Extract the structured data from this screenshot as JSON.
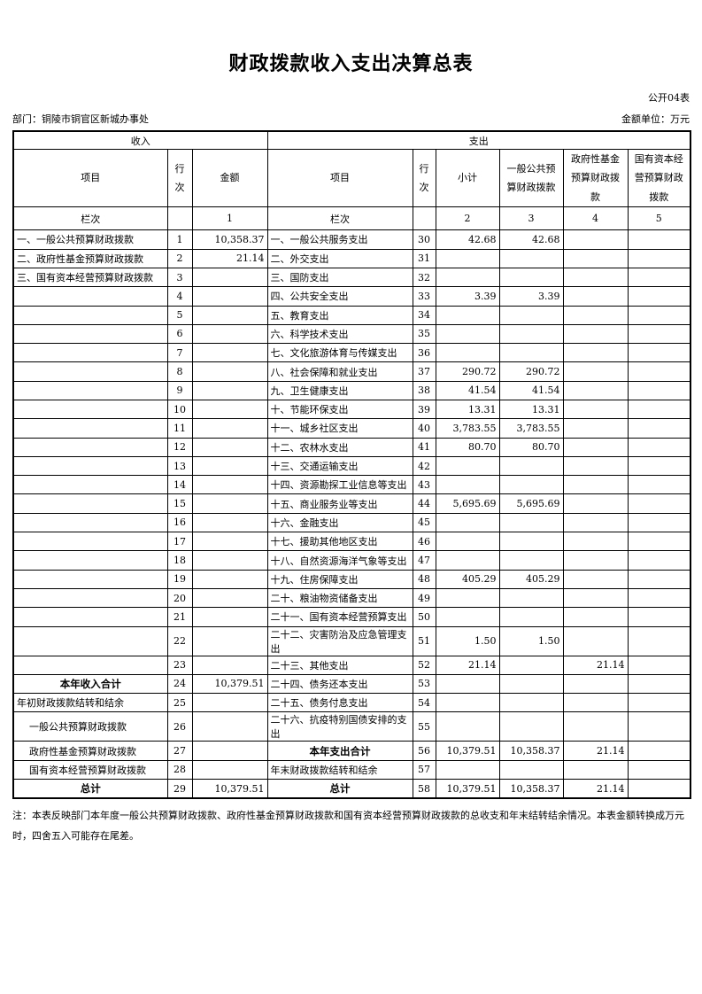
{
  "page": {
    "title": "财政拨款收入支出决算总表",
    "form_code": "公开04表",
    "department": "部门：铜陵市铜官区新城办事处",
    "unit": "金额单位：万元",
    "note": "注：本表反映部门本年度一般公共预算财政拨款、政府性基金预算财政拨款和国有资本经营预算财政拨款的总收支和年末结转结余情况。本表金额转换成万元时，四舍五入可能存在尾差。"
  },
  "table": {
    "income_header": "收入",
    "expense_header": "支出",
    "col_item": "项目",
    "col_line": "行次",
    "col_amount": "金额",
    "col_subtotal": "小计",
    "col_general": "一般公共预算财政拨款",
    "col_gov_fund": "政府性基金预算财政拨款",
    "col_state_capital": "国有资本经营预算财政拨款",
    "lanci": "栏次",
    "col_nums": [
      "1",
      "2",
      "3",
      "4",
      "5"
    ],
    "rows": [
      {
        "in_label": "一、一般公共预算财政拨款",
        "in_line": "1",
        "in_amount": "10,358.37",
        "ex_label": "一、一般公共服务支出",
        "ex_line": "30",
        "subtotal": "42.68",
        "general_budget": "42.68"
      },
      {
        "in_label": "二、政府性基金预算财政拨款",
        "in_line": "2",
        "in_amount": "21.14",
        "ex_label": "二、外交支出",
        "ex_line": "31"
      },
      {
        "in_label": "三、国有资本经营预算财政拨款",
        "in_line": "3",
        "ex_label": "三、国防支出",
        "ex_line": "32"
      },
      {
        "in_line": "4",
        "ex_label": "四、公共安全支出",
        "ex_line": "33",
        "subtotal": "3.39",
        "general_budget": "3.39"
      },
      {
        "in_line": "5",
        "ex_label": "五、教育支出",
        "ex_line": "34"
      },
      {
        "in_line": "6",
        "ex_label": "六、科学技术支出",
        "ex_line": "35"
      },
      {
        "in_line": "7",
        "ex_label": "七、文化旅游体育与传媒支出",
        "ex_line": "36"
      },
      {
        "in_line": "8",
        "ex_label": "八、社会保障和就业支出",
        "ex_line": "37",
        "subtotal": "290.72",
        "general_budget": "290.72"
      },
      {
        "in_line": "9",
        "ex_label": "九、卫生健康支出",
        "ex_line": "38",
        "subtotal": "41.54",
        "general_budget": "41.54"
      },
      {
        "in_line": "10",
        "ex_label": "十、节能环保支出",
        "ex_line": "39",
        "subtotal": "13.31",
        "general_budget": "13.31"
      },
      {
        "in_line": "11",
        "ex_label": "十一、城乡社区支出",
        "ex_line": "40",
        "subtotal": "3,783.55",
        "general_budget": "3,783.55"
      },
      {
        "in_line": "12",
        "ex_label": "十二、农林水支出",
        "ex_line": "41",
        "subtotal": "80.70",
        "general_budget": "80.70"
      },
      {
        "in_line": "13",
        "ex_label": "十三、交通运输支出",
        "ex_line": "42"
      },
      {
        "in_line": "14",
        "ex_label": "十四、资源勘探工业信息等支出",
        "ex_line": "43"
      },
      {
        "in_line": "15",
        "ex_label": "十五、商业服务业等支出",
        "ex_line": "44",
        "subtotal": "5,695.69",
        "general_budget": "5,695.69"
      },
      {
        "in_line": "16",
        "ex_label": "十六、金融支出",
        "ex_line": "45"
      },
      {
        "in_line": "17",
        "ex_label": "十七、援助其他地区支出",
        "ex_line": "46"
      },
      {
        "in_line": "18",
        "ex_label": "十八、自然资源海洋气象等支出",
        "ex_line": "47"
      },
      {
        "in_line": "19",
        "ex_label": "十九、住房保障支出",
        "ex_line": "48",
        "subtotal": "405.29",
        "general_budget": "405.29"
      },
      {
        "in_line": "20",
        "ex_label": "二十、粮油物资储备支出",
        "ex_line": "49"
      },
      {
        "in_line": "21",
        "ex_label": "二十一、国有资本经营预算支出",
        "ex_line": "50"
      },
      {
        "in_line": "22",
        "ex_label": "二十二、灾害防治及应急管理支出",
        "ex_line": "51",
        "subtotal": "1.50",
        "general_budget": "1.50"
      },
      {
        "in_line": "23",
        "ex_label": "二十三、其他支出",
        "ex_line": "52",
        "subtotal": "21.14",
        "gov_fund": "21.14"
      },
      {
        "in_label": "本年收入合计",
        "in_bold": true,
        "in_line": "24",
        "in_amount": "10,379.51",
        "ex_label": "二十四、债务还本支出",
        "ex_line": "53"
      },
      {
        "in_label": "年初财政拨款结转和结余",
        "in_line": "25",
        "ex_label": "二十五、债务付息支出",
        "ex_line": "54"
      },
      {
        "in_label": "一般公共预算财政拨款",
        "in_indent": true,
        "in_line": "26",
        "ex_label": "二十六、抗疫特别国债安排的支出",
        "ex_line": "55"
      },
      {
        "in_label": "政府性基金预算财政拨款",
        "in_indent": true,
        "in_line": "27",
        "ex_label": "本年支出合计",
        "ex_bold": true,
        "ex_line": "56",
        "subtotal": "10,379.51",
        "general_budget": "10,358.37",
        "gov_fund": "21.14"
      },
      {
        "in_label": "国有资本经营预算财政拨款",
        "in_indent": true,
        "in_line": "28",
        "ex_label": "年末财政拨款结转和结余",
        "ex_line": "57"
      },
      {
        "in_label": "总计",
        "in_bold": true,
        "in_line": "29",
        "in_amount": "10,379.51",
        "ex_label": "总计",
        "ex_bold": true,
        "ex_line": "58",
        "subtotal": "10,379.51",
        "general_budget": "10,358.37",
        "gov_fund": "21.14"
      }
    ]
  }
}
